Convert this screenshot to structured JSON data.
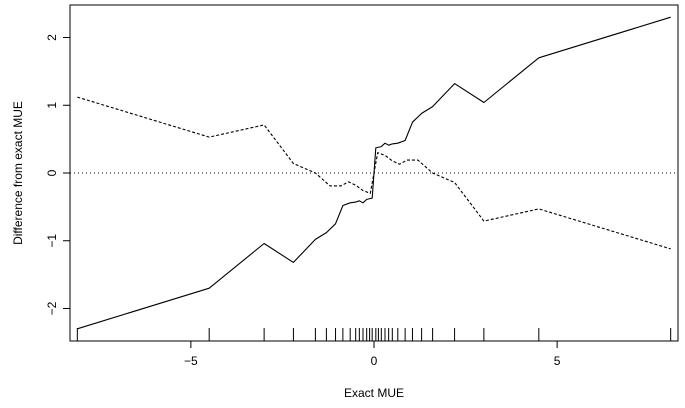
{
  "chart_data": {
    "type": "line",
    "title": "",
    "xlabel": "Exact MUE",
    "ylabel": "Difference from exact MUE",
    "xlim": [
      -8.3,
      8.3
    ],
    "ylim": [
      -2.48,
      2.48
    ],
    "x_ticks": [
      -5,
      0,
      5
    ],
    "y_ticks": [
      -2,
      -1,
      0,
      1,
      2
    ],
    "reference_line": {
      "y": 0,
      "style": "dotted"
    },
    "series": [
      {
        "style": "solid",
        "points": [
          [
            -8.1,
            -2.3
          ],
          [
            -4.5,
            -1.7
          ],
          [
            -3.0,
            -1.04
          ],
          [
            -2.2,
            -1.32
          ],
          [
            -1.6,
            -0.98
          ],
          [
            -1.3,
            -0.88
          ],
          [
            -1.05,
            -0.75
          ],
          [
            -0.85,
            -0.48
          ],
          [
            -0.65,
            -0.44
          ],
          [
            -0.5,
            -0.43
          ],
          [
            -0.4,
            -0.41
          ],
          [
            -0.3,
            -0.44
          ],
          [
            -0.2,
            -0.39
          ],
          [
            -0.05,
            -0.37
          ],
          [
            0.05,
            0.37
          ],
          [
            0.2,
            0.39
          ],
          [
            0.3,
            0.44
          ],
          [
            0.4,
            0.41
          ],
          [
            0.5,
            0.43
          ],
          [
            0.65,
            0.44
          ],
          [
            0.85,
            0.48
          ],
          [
            1.05,
            0.75
          ],
          [
            1.3,
            0.88
          ],
          [
            1.6,
            0.98
          ],
          [
            2.2,
            1.32
          ],
          [
            3.0,
            1.04
          ],
          [
            4.5,
            1.7
          ],
          [
            8.1,
            2.3
          ]
        ]
      },
      {
        "style": "dashed",
        "points": [
          [
            -8.1,
            1.12
          ],
          [
            -4.5,
            0.53
          ],
          [
            -3.0,
            0.71
          ],
          [
            -2.2,
            0.14
          ],
          [
            -1.6,
            0.0
          ],
          [
            -1.2,
            -0.19
          ],
          [
            -0.9,
            -0.19
          ],
          [
            -0.7,
            -0.13
          ],
          [
            -0.5,
            -0.18
          ],
          [
            -0.3,
            -0.26
          ],
          [
            -0.1,
            -0.3
          ],
          [
            0.1,
            0.3
          ],
          [
            0.3,
            0.26
          ],
          [
            0.5,
            0.18
          ],
          [
            0.7,
            0.13
          ],
          [
            0.9,
            0.19
          ],
          [
            1.2,
            0.19
          ],
          [
            1.6,
            0.0
          ],
          [
            2.2,
            -0.14
          ],
          [
            3.0,
            -0.71
          ],
          [
            4.5,
            -0.53
          ],
          [
            8.1,
            -1.12
          ]
        ]
      }
    ],
    "rug": [
      -8.1,
      -4.5,
      -3.0,
      -2.2,
      -1.6,
      -1.3,
      -1.05,
      -0.85,
      -0.65,
      -0.5,
      -0.4,
      -0.3,
      -0.2,
      -0.12,
      -0.05,
      0.05,
      0.12,
      0.2,
      0.3,
      0.4,
      0.5,
      0.65,
      0.85,
      1.05,
      1.3,
      1.6,
      2.2,
      3.0,
      4.5,
      8.1
    ]
  }
}
